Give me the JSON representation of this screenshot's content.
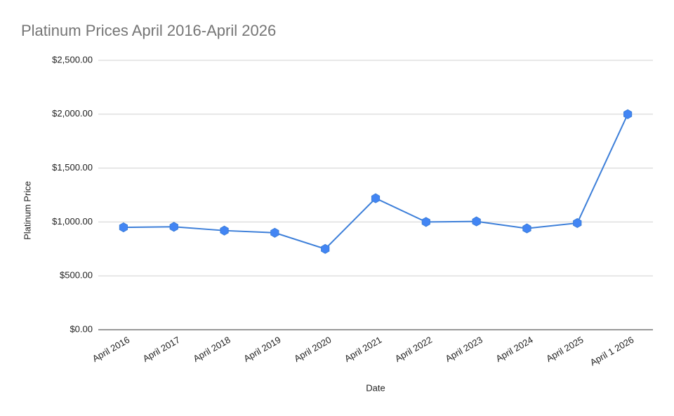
{
  "chart_data": {
    "type": "line",
    "title": "Platinum Prices April 2016-April 2026",
    "x_label": "Date",
    "y_label": "Platinum Price",
    "categories": [
      "April 2016",
      "April 2017",
      "April 2018",
      "April 2019",
      "April 2020",
      "April 2021",
      "April 2022",
      "April 2023",
      "April 2024",
      "April 2025",
      "April 1 2026"
    ],
    "values": [
      950,
      955,
      920,
      900,
      750,
      1220,
      1000,
      1005,
      940,
      990,
      2000
    ],
    "color": "#3d7fd9",
    "marker_color": "#4285f4",
    "ylim": [
      0,
      2500
    ],
    "yticks": [
      {
        "value": 0,
        "label": "$0.00"
      },
      {
        "value": 500,
        "label": "$500.00"
      },
      {
        "value": 1000,
        "label": "$1,000.00"
      },
      {
        "value": 1500,
        "label": "$1,500.00"
      },
      {
        "value": 2000,
        "label": "$2,000.00"
      },
      {
        "value": 2500,
        "label": "$2,500.00"
      }
    ],
    "grid": true
  }
}
